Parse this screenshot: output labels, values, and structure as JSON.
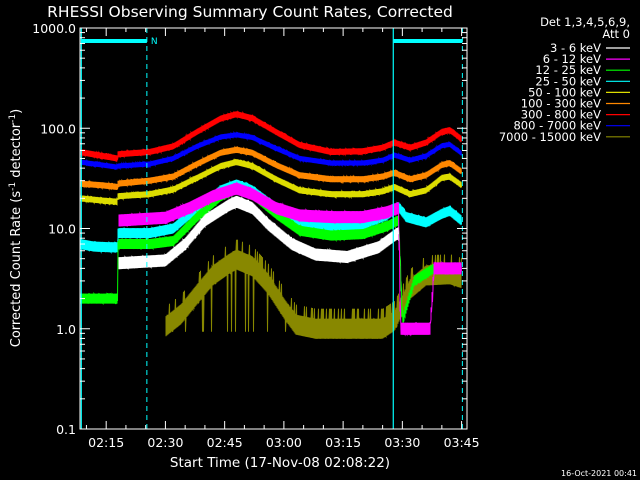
{
  "chart_data": {
    "type": "line",
    "title": "RHESSI Observing Summary Count Rates, Corrected",
    "xlabel": "Start Time (17-Nov-08 02:08:22)",
    "ylabel_parts": [
      "Corrected Count Rate (s",
      "-1",
      " detector",
      "-1",
      ")"
    ],
    "y_scale": "log",
    "ylim": [
      0.1,
      1000
    ],
    "y_ticks": [
      {
        "value": 0.1,
        "label": "0.1"
      },
      {
        "value": 1,
        "label": "1.0"
      },
      {
        "value": 10,
        "label": "10.0"
      },
      {
        "value": 100,
        "label": "100.0"
      },
      {
        "value": 1000,
        "label": "1000.0"
      }
    ],
    "xlim_minutes": [
      128.37,
      226.37
    ],
    "x_ticks": [
      {
        "minute": 135,
        "label": "02:15"
      },
      {
        "minute": 150,
        "label": "02:30"
      },
      {
        "minute": 165,
        "label": "02:45"
      },
      {
        "minute": 180,
        "label": "03:00"
      },
      {
        "minute": 195,
        "label": "03:15"
      },
      {
        "minute": 210,
        "label": "03:30"
      },
      {
        "minute": 225,
        "label": "03:45"
      }
    ],
    "legend": {
      "header": [
        "Det 1,3,4,5,6,9,",
        "Att 0"
      ],
      "placement": "right"
    },
    "series": [
      {
        "name": "3 - 6 keV",
        "color": "#ffffff",
        "noise": 0.06,
        "points": [
          [
            138.0,
            4.5
          ],
          [
            150,
            4.8
          ],
          [
            155,
            7
          ],
          [
            160,
            12
          ],
          [
            166,
            17
          ],
          [
            168,
            18.5
          ],
          [
            172,
            16
          ],
          [
            176,
            11
          ],
          [
            182,
            7
          ],
          [
            188,
            5.5
          ],
          [
            196,
            5.2
          ],
          [
            204,
            6.5
          ],
          [
            208,
            8.5
          ],
          [
            209,
            9
          ]
        ],
        "gaps": [
          [
            209,
            226.4
          ]
        ]
      },
      {
        "name": "6 - 12 keV",
        "color": "#ff00ff",
        "noise": 0.06,
        "points": [
          [
            138.0,
            12
          ],
          [
            150,
            12.8
          ],
          [
            156,
            16
          ],
          [
            162,
            21
          ],
          [
            168,
            25
          ],
          [
            172,
            22
          ],
          [
            178,
            16
          ],
          [
            184,
            13.5
          ],
          [
            192,
            13
          ],
          [
            200,
            13
          ],
          [
            206,
            14.5
          ],
          [
            209,
            16
          ],
          [
            209.5,
            1.0
          ],
          [
            217,
            1.0
          ],
          [
            218,
            4
          ],
          [
            224,
            4
          ],
          [
            225,
            4
          ]
        ]
      },
      {
        "name": "12 - 25 keV",
        "color": "#00ff00",
        "noise": 0.05,
        "points": [
          [
            128.4,
            2
          ],
          [
            130,
            2
          ],
          [
            136,
            2
          ],
          [
            137.8,
            2
          ],
          [
            138.0,
            7
          ],
          [
            146,
            7
          ],
          [
            152,
            7.5
          ],
          [
            158,
            13
          ],
          [
            164,
            21
          ],
          [
            168,
            25
          ],
          [
            172,
            22
          ],
          [
            178,
            14
          ],
          [
            184,
            9.5
          ],
          [
            192,
            8.5
          ],
          [
            200,
            8.8
          ],
          [
            206,
            10.5
          ],
          [
            209,
            12
          ],
          [
            210,
            1.2
          ],
          [
            213,
            3
          ],
          [
            218,
            4
          ],
          [
            225,
            4
          ]
        ]
      },
      {
        "name": "25 - 50 keV",
        "color": "#00ffff",
        "noise": 0.05,
        "points": [
          [
            128.4,
            7
          ],
          [
            132,
            6.6
          ],
          [
            136,
            6.5
          ],
          [
            137.8,
            6.5
          ],
          [
            138.0,
            9
          ],
          [
            146,
            9
          ],
          [
            152,
            10
          ],
          [
            158,
            16
          ],
          [
            164,
            24
          ],
          [
            168,
            27.5
          ],
          [
            172,
            24
          ],
          [
            178,
            16
          ],
          [
            184,
            11.5
          ],
          [
            192,
            10.5
          ],
          [
            200,
            11
          ],
          [
            206,
            13.5
          ],
          [
            209,
            16.5
          ],
          [
            211,
            13
          ],
          [
            216,
            11.5
          ],
          [
            220,
            14
          ],
          [
            222,
            15
          ],
          [
            225,
            12
          ]
        ]
      },
      {
        "name": "50 - 100 keV",
        "color": "#dddd00",
        "noise": 0.03,
        "points": [
          [
            128.4,
            20
          ],
          [
            134,
            19
          ],
          [
            137.8,
            18.5
          ],
          [
            138.0,
            21
          ],
          [
            146,
            22
          ],
          [
            152,
            24.5
          ],
          [
            158,
            32
          ],
          [
            164,
            42
          ],
          [
            168,
            46
          ],
          [
            172,
            42
          ],
          [
            178,
            31
          ],
          [
            184,
            24
          ],
          [
            192,
            22
          ],
          [
            200,
            22
          ],
          [
            205,
            23.5
          ],
          [
            208,
            26
          ],
          [
            212,
            22
          ],
          [
            216,
            24
          ],
          [
            220,
            32
          ],
          [
            222,
            33
          ],
          [
            225,
            27
          ]
        ]
      },
      {
        "name": "100 - 300 keV",
        "color": "#ff8800",
        "noise": 0.03,
        "points": [
          [
            128.4,
            28
          ],
          [
            134,
            27
          ],
          [
            137.8,
            26
          ],
          [
            138.0,
            28
          ],
          [
            146,
            30
          ],
          [
            152,
            33
          ],
          [
            158,
            44
          ],
          [
            164,
            57
          ],
          [
            168,
            61
          ],
          [
            172,
            57
          ],
          [
            178,
            43
          ],
          [
            184,
            34
          ],
          [
            192,
            31
          ],
          [
            200,
            31
          ],
          [
            205,
            33
          ],
          [
            208,
            36
          ],
          [
            212,
            31
          ],
          [
            216,
            34
          ],
          [
            220,
            43
          ],
          [
            222,
            45
          ],
          [
            225,
            37
          ]
        ]
      },
      {
        "name": "300 - 800 keV",
        "color": "#ff0000",
        "noise": 0.03,
        "points": [
          [
            128.4,
            58
          ],
          [
            134,
            53
          ],
          [
            137.8,
            50
          ],
          [
            138.0,
            55
          ],
          [
            146,
            58
          ],
          [
            152,
            66
          ],
          [
            158,
            92
          ],
          [
            164,
            125
          ],
          [
            168,
            138
          ],
          [
            172,
            126
          ],
          [
            178,
            92
          ],
          [
            184,
            68
          ],
          [
            192,
            58
          ],
          [
            200,
            59
          ],
          [
            205,
            64
          ],
          [
            208,
            72
          ],
          [
            212,
            64
          ],
          [
            216,
            72
          ],
          [
            220,
            92
          ],
          [
            222,
            96
          ],
          [
            225,
            78
          ]
        ]
      },
      {
        "name": "800 - 7000 keV",
        "color": "#0000ff",
        "noise": 0.025,
        "points": [
          [
            128.4,
            46
          ],
          [
            134,
            43
          ],
          [
            137.8,
            41
          ],
          [
            138.0,
            42
          ],
          [
            146,
            44
          ],
          [
            152,
            50
          ],
          [
            158,
            66
          ],
          [
            164,
            82
          ],
          [
            168,
            86
          ],
          [
            172,
            81
          ],
          [
            178,
            63
          ],
          [
            184,
            50
          ],
          [
            192,
            45
          ],
          [
            200,
            45
          ],
          [
            205,
            48
          ],
          [
            208,
            54
          ],
          [
            212,
            48
          ],
          [
            216,
            53
          ],
          [
            220,
            67
          ],
          [
            222,
            69
          ],
          [
            225,
            56
          ]
        ]
      },
      {
        "name": "7000 - 15000 keV",
        "color": "#888800",
        "noise": 0.1,
        "dropout": true,
        "points": [
          [
            150,
            1.05
          ],
          [
            154,
            1.4
          ],
          [
            158,
            2.2
          ],
          [
            162,
            3.4
          ],
          [
            166,
            4.4
          ],
          [
            168,
            4.9
          ],
          [
            172,
            4.2
          ],
          [
            176,
            2.8
          ],
          [
            180,
            1.6
          ],
          [
            183,
            1.1
          ],
          [
            188,
            1.0
          ],
          [
            192,
            1.0
          ],
          [
            200,
            1.0
          ],
          [
            205,
            1.0
          ],
          [
            208,
            1.2
          ],
          [
            212,
            2.5
          ],
          [
            216,
            3.4
          ],
          [
            222,
            3.5
          ],
          [
            225,
            3.2
          ]
        ],
        "gaps": [
          [
            128.3,
            149.5
          ]
        ]
      }
    ],
    "vertical_markers_minutes": [
      128.7,
      145.3,
      207.7,
      225.2
    ],
    "bars_top": [
      {
        "from": 128.7,
        "to": 145.3
      },
      {
        "from": 207.7,
        "to": 225.2
      }
    ],
    "bar_label": "N",
    "timestamp": "16-Oct-2021 00:41"
  }
}
